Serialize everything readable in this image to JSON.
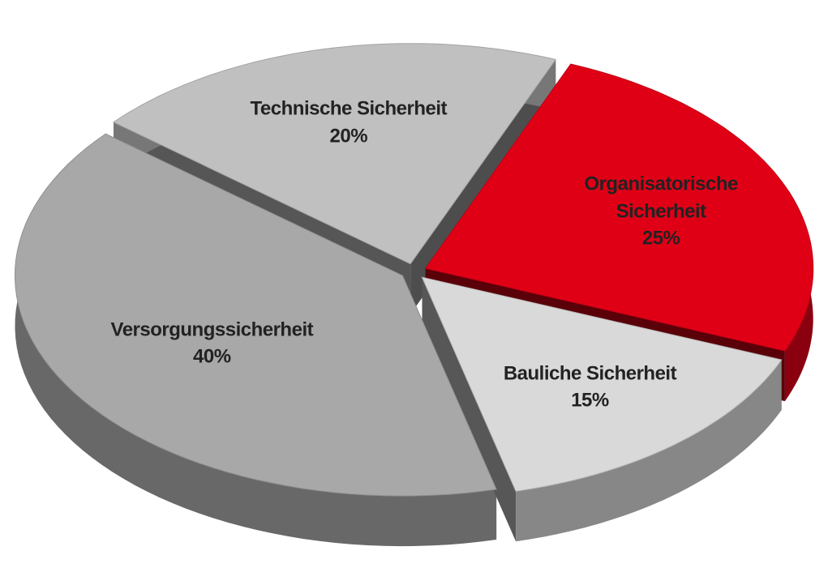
{
  "chart_data": {
    "type": "pie3d",
    "categories": [
      "Technische Sicherheit",
      "Organisatorische Sicherheit",
      "Bauliche Sicherheit",
      "Versorgungssicherheit"
    ],
    "values": [
      20,
      25,
      15,
      40
    ],
    "value_labels": [
      "20%",
      "25%",
      "15%",
      "40%"
    ],
    "colors": [
      "#c0c0c0",
      "#e00016",
      "#d9d9d9",
      "#a8a8a8"
    ]
  }
}
